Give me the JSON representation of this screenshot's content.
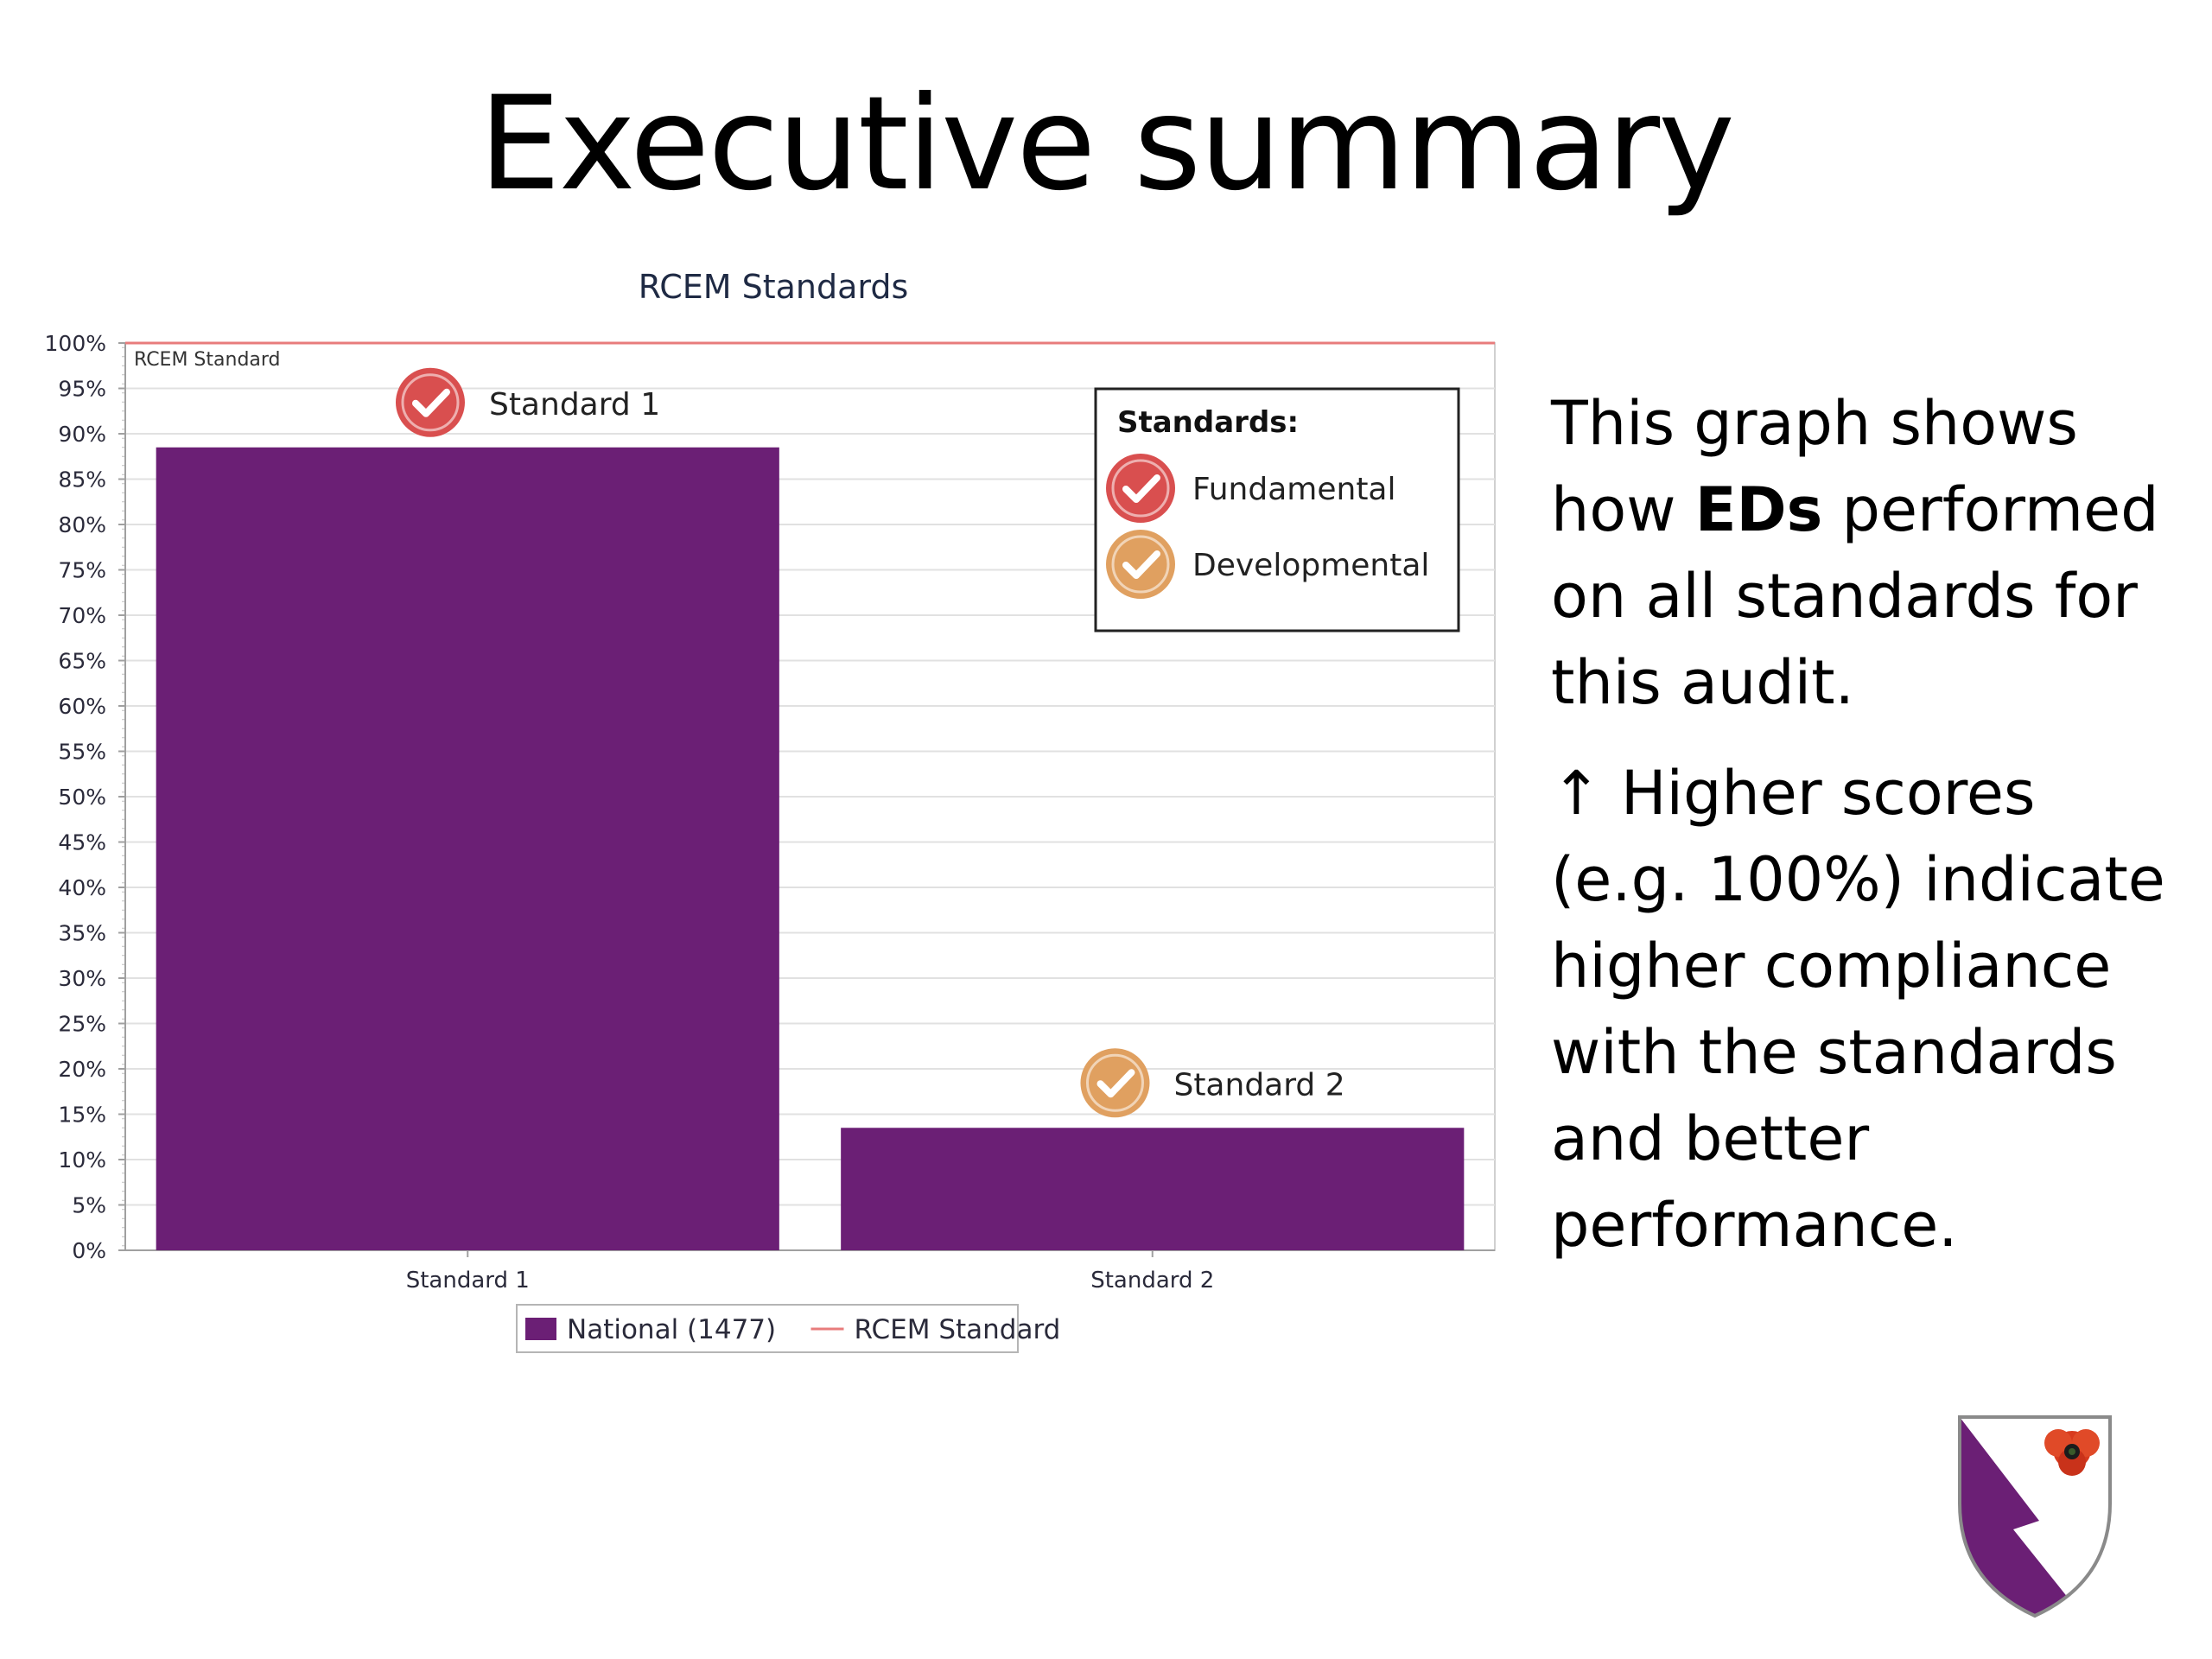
{
  "page": {
    "title": "Executive summary",
    "description": {
      "p1_before": "This graph shows how ",
      "p1_bold": "EDs",
      "p1_after": " performed on all standards for this audit.",
      "p2": "↑ Higher scores (e.g. 100%) indicate higher compliance with the standards and better performance."
    }
  },
  "chart_data": {
    "type": "bar",
    "title": "RCEM Standards",
    "categories": [
      "Standard 1",
      "Standard 2"
    ],
    "series": [
      {
        "name": "National (1477)",
        "values": [
          88.5,
          13.5
        ],
        "color": "#6b1f75"
      }
    ],
    "reference_line": {
      "name": "RCEM Standard",
      "value": 100,
      "color": "#e87c7c"
    },
    "bar_annotations": [
      {
        "label": "Standard 1",
        "kind": "fundamental"
      },
      {
        "label": "Standard 2",
        "kind": "developmental"
      }
    ],
    "ylim": [
      0,
      100
    ],
    "y_ticks": [
      "0%",
      "5%",
      "10%",
      "15%",
      "20%",
      "25%",
      "30%",
      "35%",
      "40%",
      "45%",
      "50%",
      "55%",
      "60%",
      "65%",
      "70%",
      "75%",
      "80%",
      "85%",
      "90%",
      "95%",
      "100%"
    ],
    "grid": true,
    "standards_legend": {
      "title": "Standards:",
      "items": [
        {
          "label": "Fundamental",
          "color": "#d94f4f",
          "icon": "check-badge-icon"
        },
        {
          "label": "Developmental",
          "color": "#e0a060",
          "icon": "check-badge-icon"
        }
      ]
    },
    "legend": [
      {
        "label": "National (1477)",
        "kind": "swatch",
        "color": "#6b1f75"
      },
      {
        "label": "RCEM Standard",
        "kind": "line",
        "color": "#e87c7c"
      }
    ],
    "legend_position": "bottom-center"
  },
  "logo": {
    "icon": "shield-poppy-logo",
    "colors": [
      "#6b1f75",
      "#d83a1e"
    ]
  }
}
